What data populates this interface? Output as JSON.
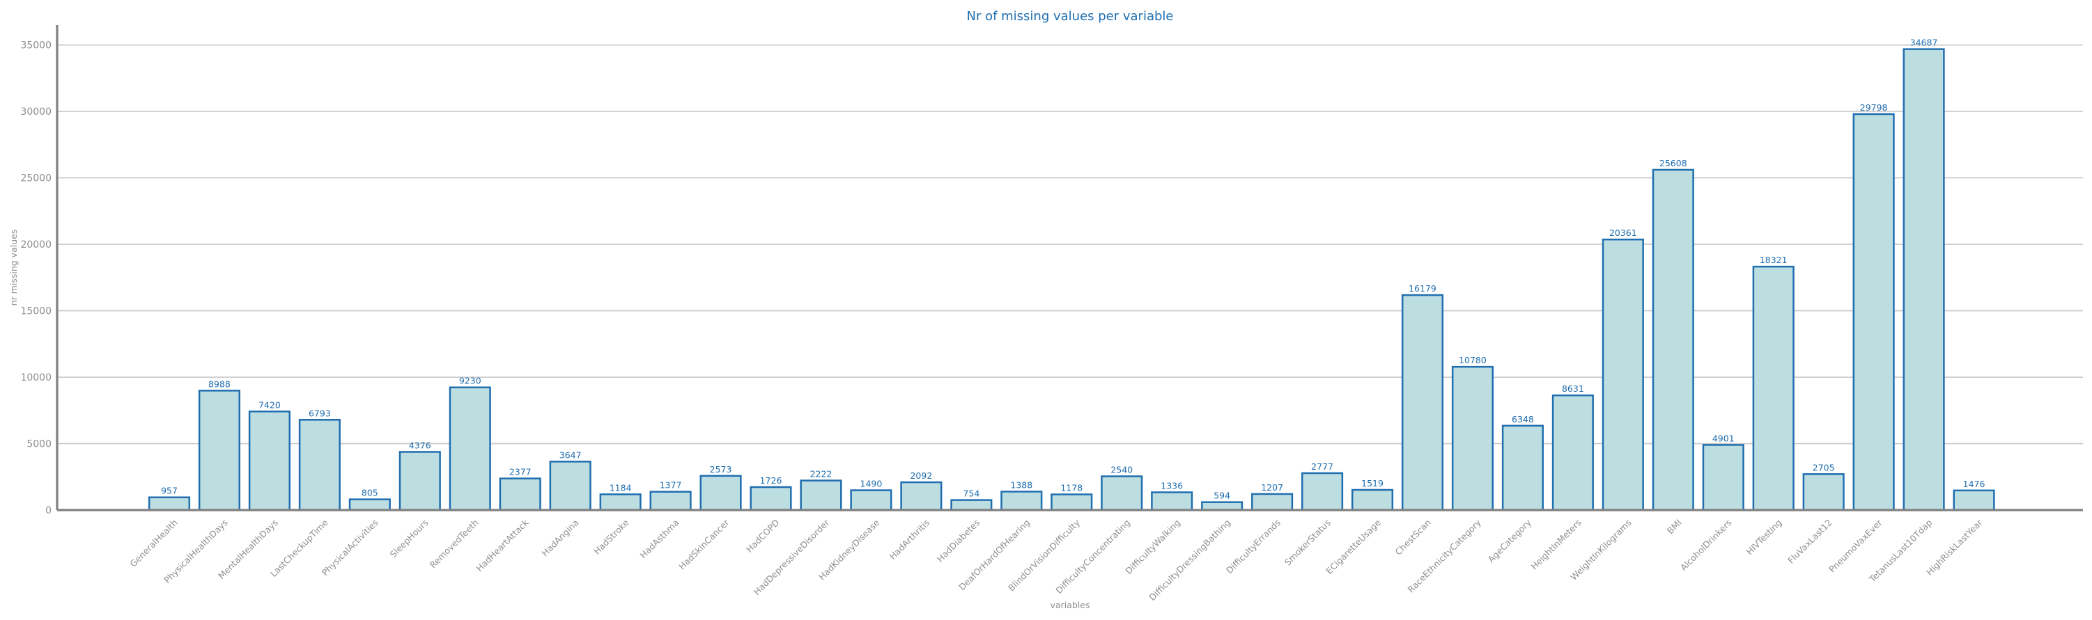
{
  "chart_data": {
    "type": "bar",
    "title": "Nr of missing values per variable",
    "xlabel": "variables",
    "ylabel": "nr missing values",
    "ylim": [
      0,
      36500
    ],
    "yticks": [
      0,
      5000,
      10000,
      15000,
      20000,
      25000,
      30000,
      35000
    ],
    "grid": "horizontal",
    "colors": {
      "bar_fill": "#bddee1",
      "bar_edge": "#1f6eb0",
      "text_accent": "#1f6eb0",
      "text_muted": "#8f8f8f"
    },
    "categories": [
      "GeneralHealth",
      "PhysicalHealthDays",
      "MentalHealthDays",
      "LastCheckupTime",
      "PhysicalActivities",
      "SleepHours",
      "RemovedTeeth",
      "HadHeartAttack",
      "HadAngina",
      "HadStroke",
      "HadAsthma",
      "HadSkinCancer",
      "HadCOPD",
      "HadDepressiveDisorder",
      "HadKidneyDisease",
      "HadArthritis",
      "HadDiabetes",
      "DeafOrHardOfHearing",
      "BlindOrVisionDifficulty",
      "DifficultyConcentrating",
      "DifficultyWalking",
      "DifficultyDressingBathing",
      "DifficultyErrands",
      "SmokerStatus",
      "ECigaretteUsage",
      "ChestScan",
      "RaceEthnicityCategory",
      "AgeCategory",
      "HeightInMeters",
      "WeightInKilograms",
      "BMI",
      "AlcoholDrinkers",
      "HIVTesting",
      "FluVaxLast12",
      "PneumoVaxEver",
      "TetanusLast10Tdap",
      "HighRiskLastYear"
    ],
    "values": [
      957,
      8988,
      7420,
      6793,
      805,
      4376,
      9230,
      2377,
      3647,
      1184,
      1377,
      2573,
      1726,
      2222,
      1490,
      2092,
      754,
      1388,
      1178,
      2540,
      1336,
      594,
      1207,
      2777,
      1519,
      16179,
      10780,
      6348,
      8631,
      20361,
      25608,
      4901,
      18321,
      2705,
      29798,
      34687,
      1476
    ]
  }
}
